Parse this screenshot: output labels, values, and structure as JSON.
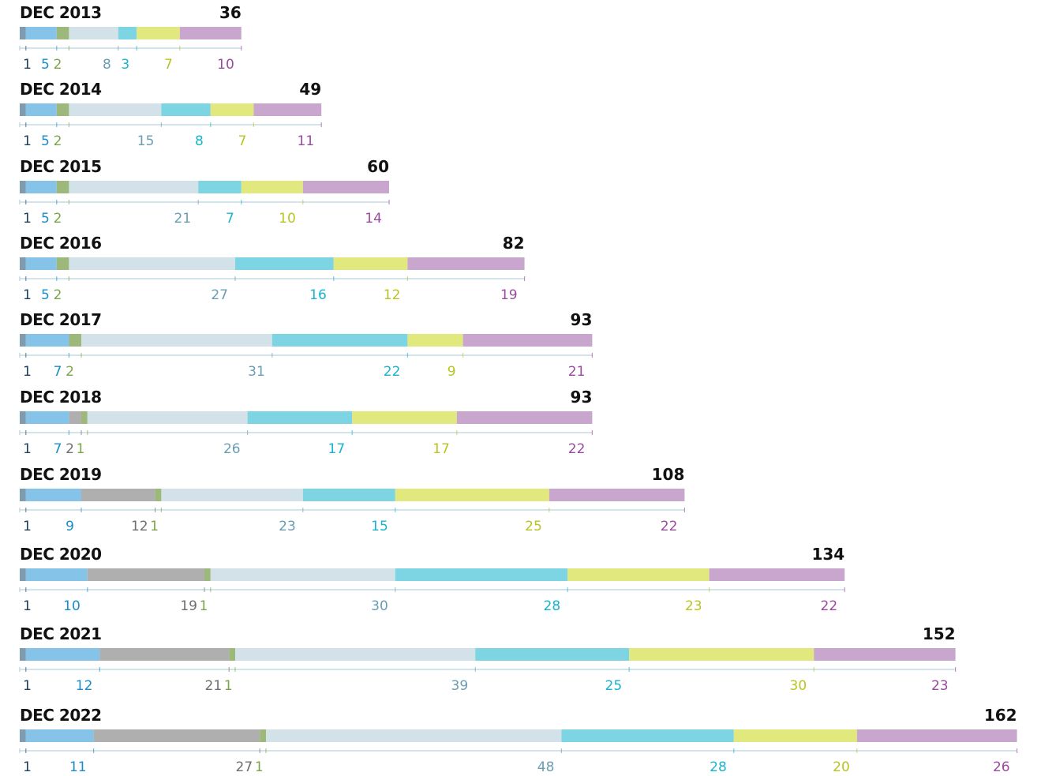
{
  "chart_data": {
    "type": "bar",
    "orientation": "horizontal-stacked",
    "title": "",
    "segment_colors": [
      "#7e9bb0",
      "#85c3e8",
      "#afafaf",
      "#9cb87a",
      "#d3e1e8",
      "#7dd4e3",
      "#e1e87e",
      "#c9a6cd"
    ],
    "label_colors": [
      "#1d3f5e",
      "#1a8cc8",
      "#6e6e6e",
      "#7aa64a",
      "#6a9db3",
      "#18b4cc",
      "#b8c420",
      "#9a4a9e"
    ],
    "rows": [
      {
        "label": "DEC 2013",
        "total": "36",
        "values": [
          1,
          5,
          0,
          2,
          8,
          3,
          7,
          10
        ],
        "labels": [
          "1",
          "5",
          "",
          "2",
          "8",
          "3",
          "7",
          "10"
        ]
      },
      {
        "label": "DEC 2014",
        "total": "49",
        "values": [
          1,
          5,
          0,
          2,
          15,
          8,
          7,
          11
        ],
        "labels": [
          "1",
          "5",
          "",
          "2",
          "15",
          "8",
          "7",
          "11"
        ]
      },
      {
        "label": "DEC 2015",
        "total": "60",
        "values": [
          1,
          5,
          0,
          2,
          21,
          7,
          10,
          14
        ],
        "labels": [
          "1",
          "5",
          "",
          "2",
          "21",
          "7",
          "10",
          "14"
        ]
      },
      {
        "label": "DEC 2016",
        "total": "82",
        "values": [
          1,
          5,
          0,
          2,
          27,
          16,
          12,
          19
        ],
        "labels": [
          "1",
          "5",
          "",
          "2",
          "27",
          "16",
          "12",
          "19"
        ]
      },
      {
        "label": "DEC 2017",
        "total": "93",
        "values": [
          1,
          7,
          0,
          2,
          31,
          22,
          9,
          21
        ],
        "labels": [
          "1",
          "7",
          "",
          "2",
          "31",
          "22",
          "9",
          "21"
        ]
      },
      {
        "label": "DEC 2018",
        "total": "93",
        "values": [
          1,
          7,
          2,
          1,
          26,
          17,
          17,
          22
        ],
        "labels": [
          "1",
          "7",
          "2",
          "1",
          "26",
          "17",
          "17",
          "22"
        ]
      },
      {
        "label": "DEC 2019",
        "total": "108",
        "values": [
          1,
          9,
          12,
          1,
          23,
          15,
          25,
          22
        ],
        "labels": [
          "1",
          "9",
          "12",
          "1",
          "23",
          "15",
          "25",
          "22"
        ]
      },
      {
        "label": "DEC 2020",
        "total": "134",
        "values": [
          1,
          10,
          19,
          1,
          30,
          28,
          23,
          22
        ],
        "labels": [
          "1",
          "10",
          "19",
          "1",
          "30",
          "28",
          "23",
          "22"
        ]
      },
      {
        "label": "DEC 2021",
        "total": "152",
        "values": [
          1,
          12,
          21,
          1,
          39,
          25,
          30,
          23
        ],
        "labels": [
          "1",
          "12",
          "21",
          "1",
          "39",
          "25",
          "30",
          "23"
        ]
      },
      {
        "label": "DEC 2022",
        "total": "162",
        "values": [
          1,
          11,
          27,
          1,
          48,
          28,
          20,
          26
        ],
        "labels": [
          "1",
          "11",
          "27",
          "1",
          "48",
          "28",
          "20",
          "26"
        ]
      }
    ]
  }
}
